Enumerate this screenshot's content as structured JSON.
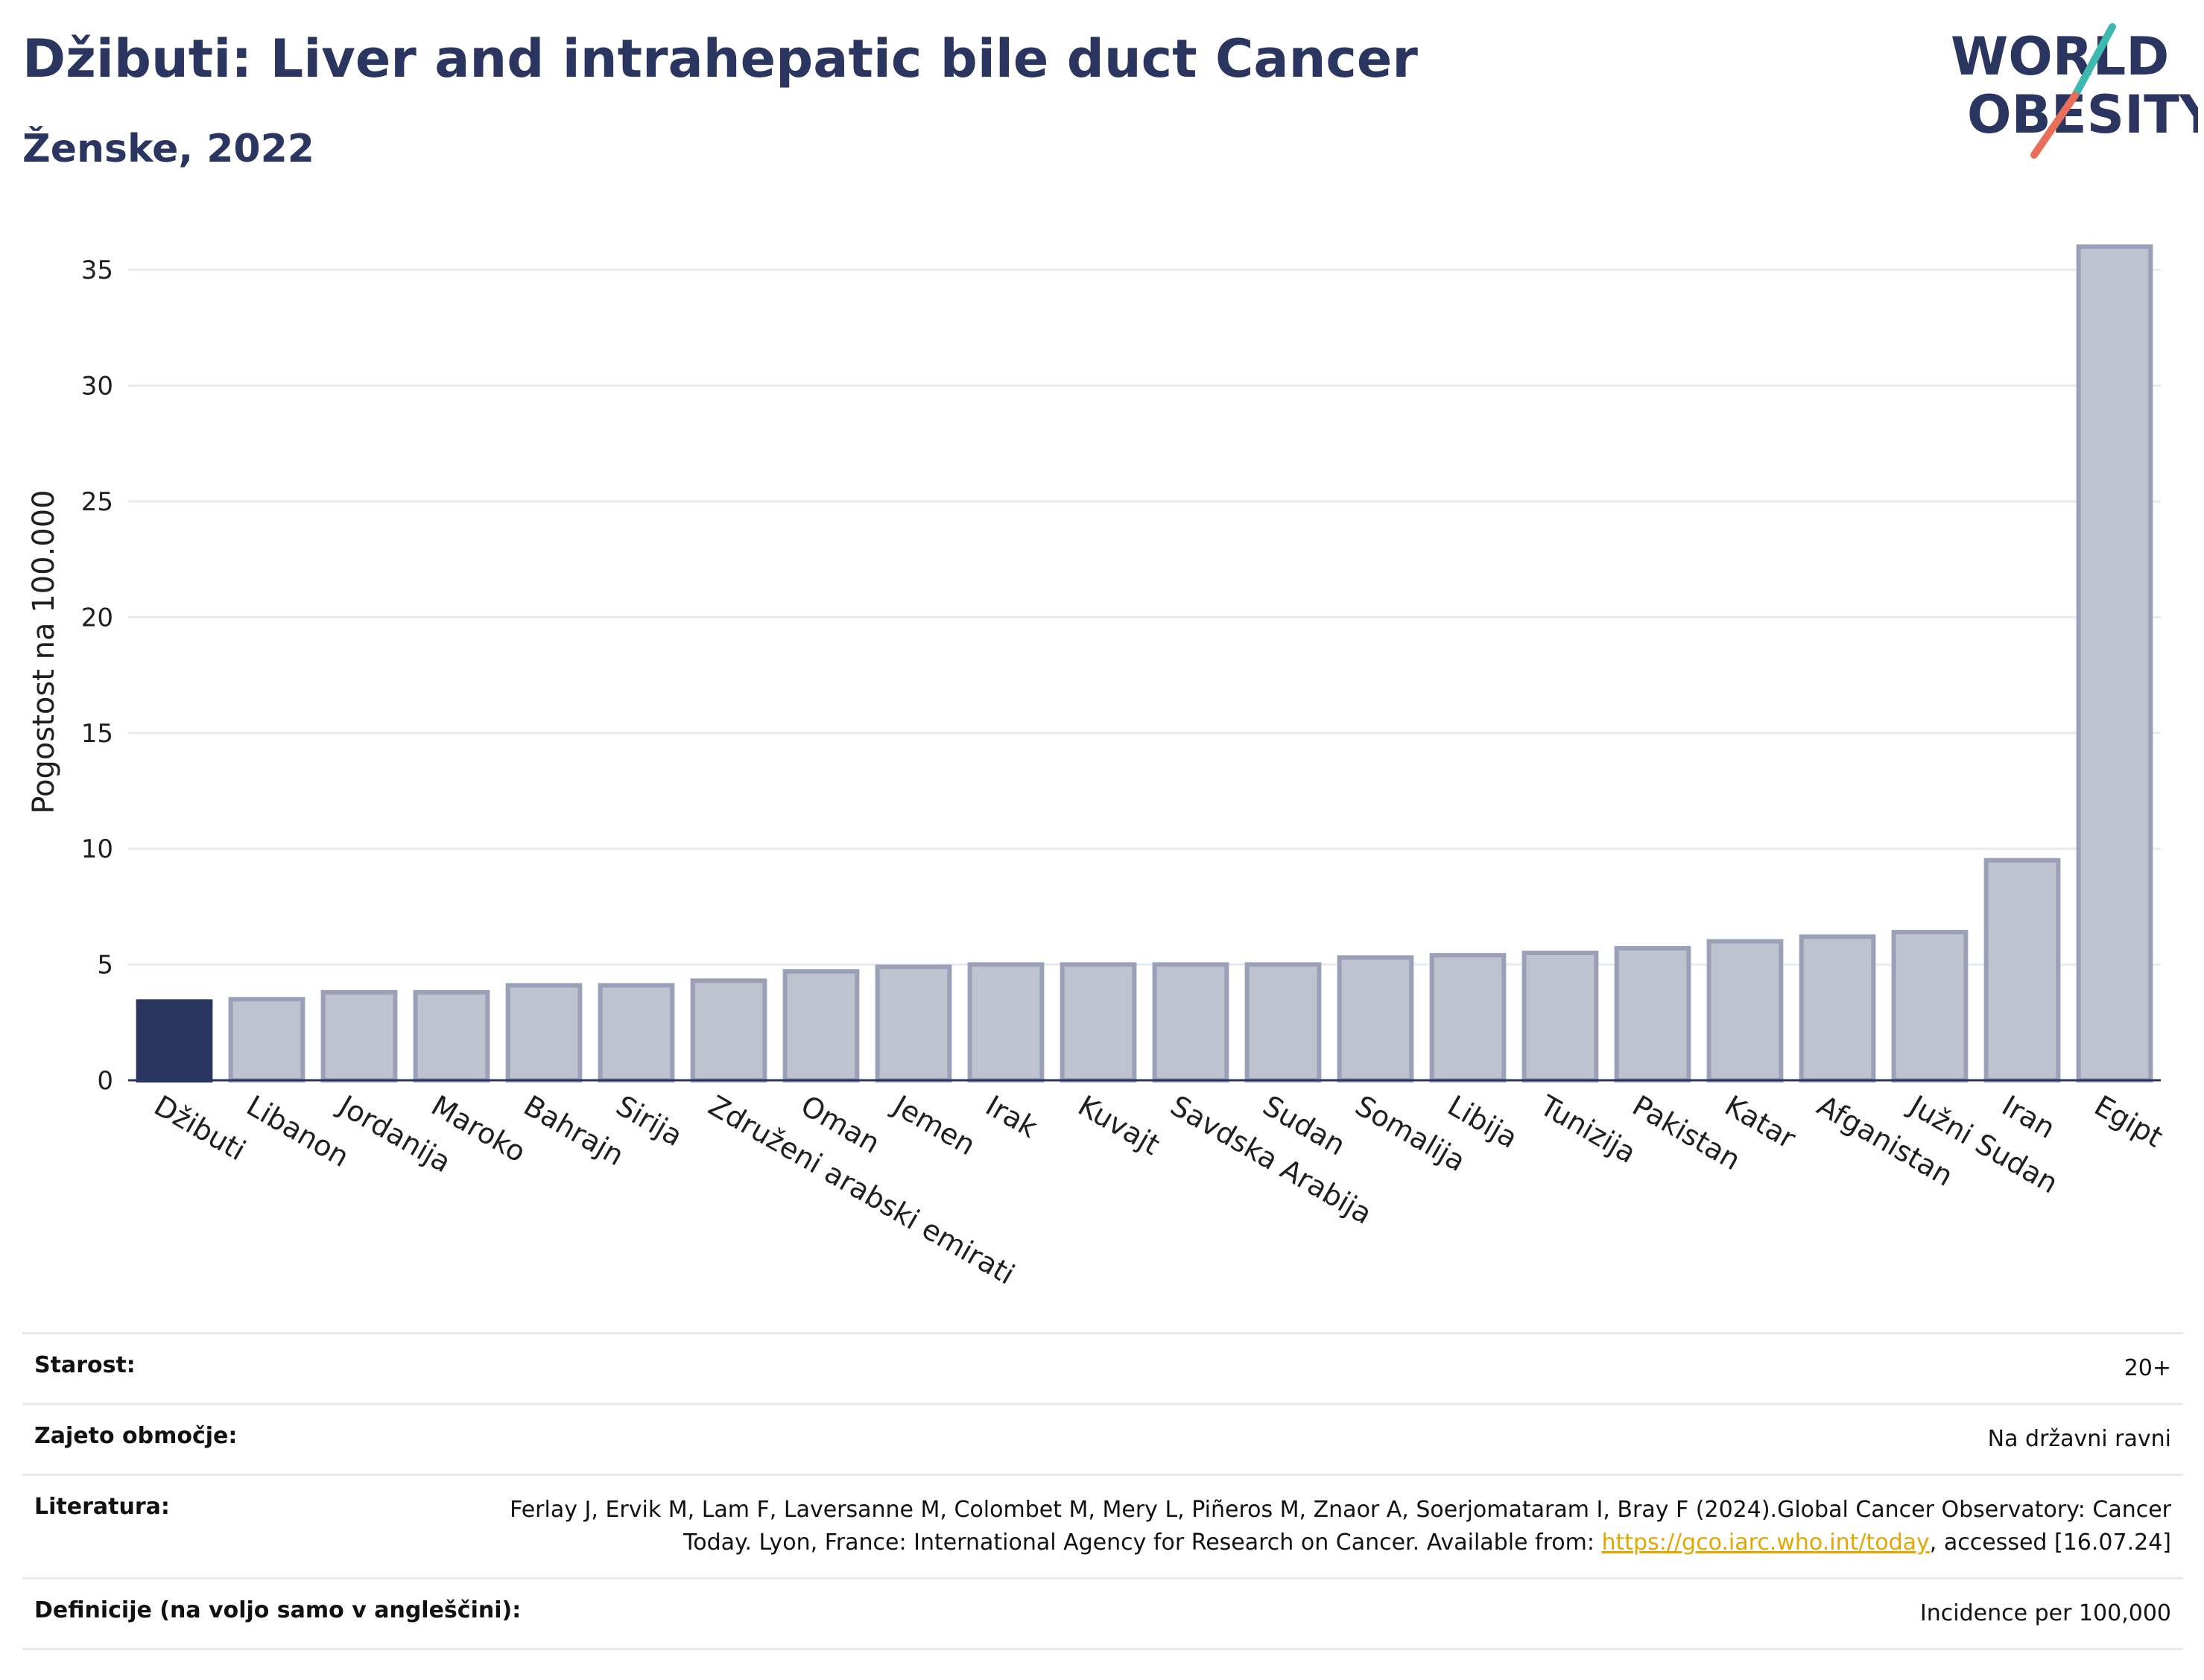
{
  "header": {
    "title": "Džibuti: Liver and intrahepatic bile duct Cancer",
    "subtitle": "Ženske, 2022"
  },
  "logo": {
    "line1": "WORLD",
    "line2": "OBESITY",
    "colors": {
      "text": "#2b3660",
      "accent_teal": "#3fb8b0",
      "accent_coral": "#e8705a"
    }
  },
  "chart_data": {
    "type": "bar",
    "ylabel": "Pogostost na 100.000",
    "xlabel": "",
    "ylim": [
      0,
      37
    ],
    "yticks": [
      0,
      5,
      10,
      15,
      20,
      25,
      30,
      35
    ],
    "grid": true,
    "highlight_category": "Džibuti",
    "colors": {
      "highlight": "#2b3660",
      "bar_fill": "#bfc3d0",
      "bar_stroke": "#9aa0b8",
      "grid": "#e6ebf2",
      "axis": "#2b3660"
    },
    "categories": [
      "Džibuti",
      "Libanon",
      "Jordanija",
      "Maroko",
      "Bahrajn",
      "Sirija",
      "Združeni arabski emirati",
      "Oman",
      "Jemen",
      "Irak",
      "Kuvajt",
      "Savdska Arabija",
      "Sudan",
      "Somalija",
      "Libija",
      "Tunizija",
      "Pakistan",
      "Katar",
      "Afganistan",
      "Južni Sudan",
      "Iran",
      "Egipt"
    ],
    "values": [
      3.4,
      3.5,
      3.8,
      3.8,
      4.1,
      4.1,
      4.3,
      4.7,
      4.9,
      5.0,
      5.0,
      5.0,
      5.0,
      5.3,
      5.4,
      5.5,
      5.7,
      6.0,
      6.2,
      6.4,
      9.5,
      36.0
    ]
  },
  "info": {
    "rows": [
      {
        "label": "Starost:",
        "value": "20+"
      },
      {
        "label": "Zajeto območje:",
        "value": "Na državni ravni"
      },
      {
        "label": "Literatura:",
        "value_before": "Ferlay J, Ervik M, Lam F, Laversanne M, Colombet M, Mery L, Piñeros M, Znaor A, Soerjomataram I, Bray F (2024).Global Cancer Observatory: Cancer Today. Lyon, France: International Agency for Research on Cancer. Available from: ",
        "link": "https://gco.iarc.who.int/today",
        "value_after": ", accessed [16.07.24]"
      },
      {
        "label": "Definicije (na voljo samo v angleščini):",
        "value": "Incidence per 100,000"
      }
    ]
  }
}
